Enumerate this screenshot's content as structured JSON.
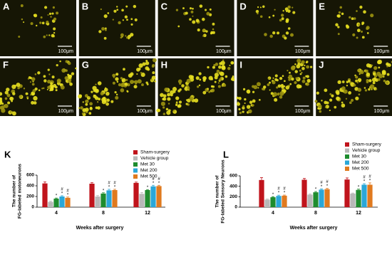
{
  "panels": [
    {
      "label": "A",
      "scale": "100μm"
    },
    {
      "label": "B",
      "scale": "100μm"
    },
    {
      "label": "C",
      "scale": "100μm"
    },
    {
      "label": "D",
      "scale": "100μm"
    },
    {
      "label": "E",
      "scale": "100μm"
    },
    {
      "label": "F",
      "scale": "100μm"
    },
    {
      "label": "G",
      "scale": "100μm"
    },
    {
      "label": "H",
      "scale": "100μm"
    },
    {
      "label": "I",
      "scale": "100μm"
    },
    {
      "label": "J",
      "scale": "100μm"
    }
  ],
  "chart_data": [
    {
      "type": "bar",
      "label": "K",
      "ylabel": [
        "The number of",
        "FG-labeled motoneurons"
      ],
      "xlabel": "Weeks after surgery",
      "categories": [
        "4",
        "8",
        "12"
      ],
      "ylim": [
        0,
        600
      ],
      "yticks": [
        0,
        200,
        400,
        600
      ],
      "series": [
        {
          "name": "Sham-surgery",
          "color": "#c0141c",
          "values": [
            445,
            440,
            455
          ],
          "errors": [
            30,
            20,
            15
          ]
        },
        {
          "name": "Vehicle group",
          "color": "#b8b8b8",
          "values": [
            100,
            200,
            250
          ],
          "errors": [
            12,
            18,
            25
          ]
        },
        {
          "name": "Met 30",
          "color": "#1e8c2e",
          "values": [
            160,
            255,
            320
          ],
          "errors": [
            12,
            15,
            10
          ],
          "markers": [
            [
              "*"
            ],
            [
              "*"
            ],
            [
              "*"
            ]
          ]
        },
        {
          "name": "Met 200",
          "color": "#2aa7d8",
          "values": [
            200,
            315,
            390
          ],
          "errors": [
            15,
            20,
            20
          ],
          "markers": [
            [
              "#",
              "*"
            ],
            [
              "#",
              "*"
            ],
            [
              "#",
              "*"
            ]
          ]
        },
        {
          "name": "Met 500",
          "color": "#e07a1f",
          "values": [
            175,
            320,
            395
          ],
          "errors": [
            15,
            15,
            15
          ],
          "markers": [
            [
              "#",
              "*"
            ],
            [
              "#",
              "*"
            ],
            [
              "#",
              "*"
            ]
          ]
        }
      ]
    },
    {
      "type": "bar",
      "label": "L",
      "ylabel": [
        "The number of",
        "FG-labeled Sensory Neurons"
      ],
      "xlabel": "Weeks after surgery",
      "categories": [
        "4",
        "8",
        "12"
      ],
      "ylim": [
        0,
        600
      ],
      "yticks": [
        0,
        200,
        400,
        600
      ],
      "series": [
        {
          "name": "Sham-surgery",
          "color": "#c0141c",
          "values": [
            520,
            525,
            530
          ],
          "errors": [
            45,
            25,
            30
          ]
        },
        {
          "name": "Vehicle group",
          "color": "#b8b8b8",
          "values": [
            145,
            240,
            260
          ],
          "errors": [
            10,
            12,
            10
          ]
        },
        {
          "name": "Met 30",
          "color": "#1e8c2e",
          "values": [
            190,
            285,
            330
          ],
          "errors": [
            12,
            15,
            15
          ],
          "markers": [
            [
              "*"
            ],
            [
              "*"
            ],
            [
              "*"
            ]
          ]
        },
        {
          "name": "Met 200",
          "color": "#2aa7d8",
          "values": [
            215,
            335,
            430
          ],
          "errors": [
            15,
            15,
            20
          ],
          "markers": [
            [
              "#",
              "*"
            ],
            [
              "#",
              "*"
            ],
            [
              "#",
              "*"
            ]
          ]
        },
        {
          "name": "Met 500",
          "color": "#e07a1f",
          "values": [
            220,
            345,
            430
          ],
          "errors": [
            12,
            15,
            35
          ],
          "markers": [
            [
              "#",
              "*"
            ],
            [
              "#",
              "*"
            ],
            [
              "#",
              "*"
            ]
          ]
        }
      ]
    }
  ]
}
